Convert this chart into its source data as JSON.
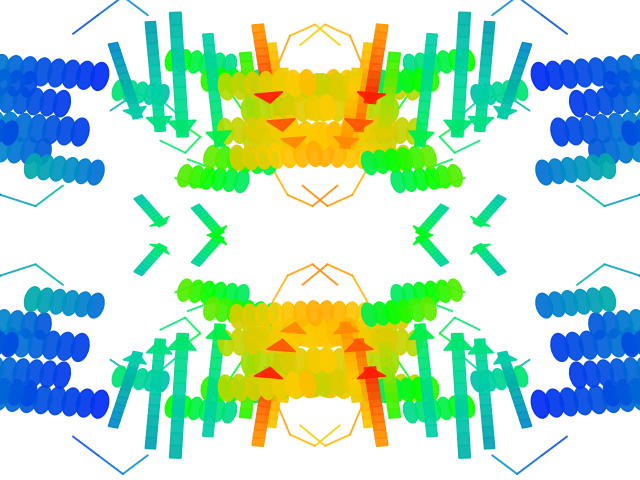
{
  "bg_color": "#ffffff",
  "figsize": [
    6.4,
    4.8
  ],
  "dpi": 100,
  "rainbow_colors": [
    "#0000ff",
    "#0033ee",
    "#0055dd",
    "#0088cc",
    "#00aaaa",
    "#00ccaa",
    "#00dd88",
    "#00ee55",
    "#00ff00",
    "#55ee00",
    "#aadd00",
    "#ddcc00",
    "#ffcc00",
    "#ffaa00",
    "#ff8800",
    "#ff5500",
    "#ff2200",
    "#ff0000"
  ],
  "subunit_positions": [
    [
      0.27,
      0.75,
      false,
      false
    ],
    [
      0.27,
      0.27,
      false,
      true
    ],
    [
      0.73,
      0.75,
      true,
      false
    ],
    [
      0.73,
      0.27,
      true,
      true
    ]
  ]
}
